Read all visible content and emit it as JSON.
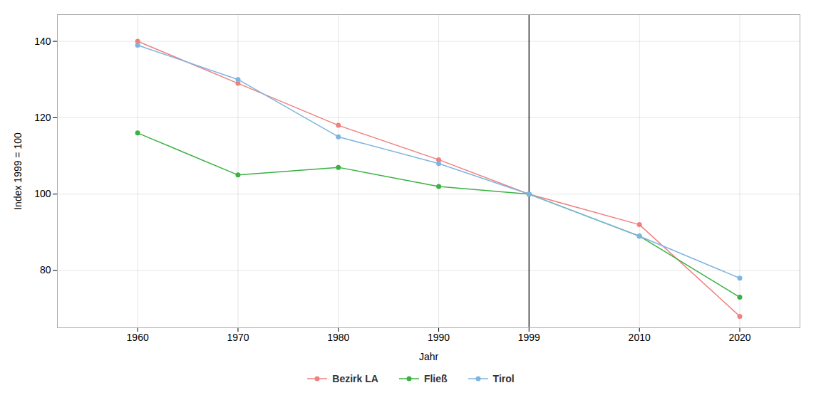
{
  "chart_data": {
    "type": "line",
    "xlabel": "Jahr",
    "ylabel": "Index 1999 = 100",
    "x": [
      1960,
      1970,
      1980,
      1990,
      1999,
      2010,
      2020
    ],
    "series": [
      {
        "name": "Bezirk LA",
        "color": "#F08080",
        "values": [
          140,
          129,
          118,
          109,
          100,
          92,
          68
        ]
      },
      {
        "name": "Fließ",
        "color": "#3BB143",
        "values": [
          116,
          105,
          107,
          102,
          100,
          89,
          73
        ]
      },
      {
        "name": "Tirol",
        "color": "#7EB5E0",
        "values": [
          139,
          130,
          115,
          108,
          100,
          89,
          78
        ]
      }
    ],
    "vline": 1999,
    "xlim": [
      1952,
      2026
    ],
    "xticks": [
      1960,
      1970,
      1980,
      1990,
      1999,
      2010,
      2020
    ],
    "ylim": [
      65,
      147
    ],
    "yticks": [
      80,
      100,
      120,
      140
    ],
    "grid": true,
    "legend": "bottom",
    "marker": "circle"
  }
}
